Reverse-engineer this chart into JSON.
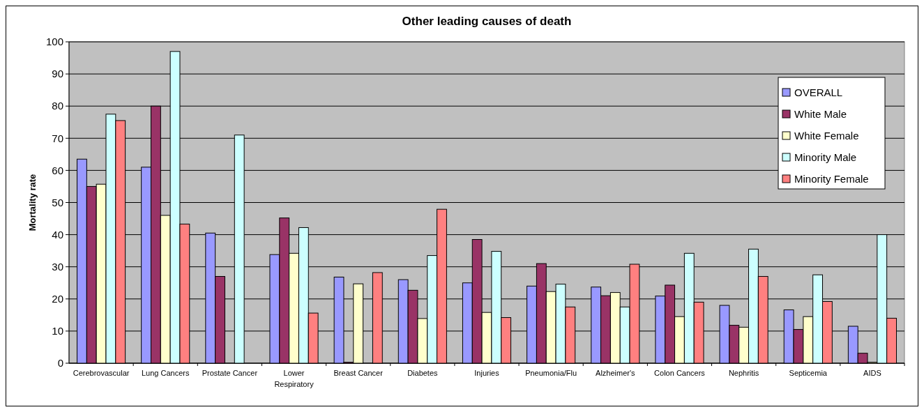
{
  "chart_data": {
    "type": "bar",
    "title": "Other leading causes of death",
    "ylabel": "Mortality rate",
    "categories": [
      "Cerebrovascular",
      "Lung Cancers",
      "Prostate Cancer",
      "Lower Respiratory",
      "Breast Cancer",
      "Diabetes",
      "Injuries",
      "Pneumonia/Flu",
      "Alzheimer's",
      "Colon Cancers",
      "Nephritis",
      "Septicemia",
      "AIDS"
    ],
    "series": [
      {
        "name": "OVERALL",
        "color": "#9999ff",
        "values": [
          63.5,
          61,
          40.5,
          33.8,
          26.8,
          26,
          25,
          24,
          23.7,
          20.9,
          18,
          16.6,
          11.5
        ]
      },
      {
        "name": "White Male",
        "color": "#993366",
        "values": [
          55,
          80,
          27,
          45.2,
          0.3,
          22.7,
          38.5,
          31,
          21,
          24.3,
          11.8,
          10.5,
          3.1
        ]
      },
      {
        "name": "White Female",
        "color": "#ffffcc",
        "values": [
          55.7,
          46,
          null,
          34.2,
          24.7,
          13.9,
          15.8,
          22.3,
          22,
          14.5,
          11.2,
          14.5,
          0.3
        ]
      },
      {
        "name": "Minority Male",
        "color": "#ccffff",
        "values": [
          77.5,
          97,
          71,
          42.2,
          null,
          33.5,
          34.8,
          24.6,
          17.5,
          34.2,
          35.5,
          27.5,
          40
        ]
      },
      {
        "name": "Minority Female",
        "color": "#ff8080",
        "values": [
          75.5,
          43.3,
          null,
          15.6,
          28.2,
          47.9,
          14.2,
          17.5,
          30.8,
          19,
          27,
          19.2,
          14
        ]
      }
    ],
    "ylim": [
      0,
      100
    ],
    "yticks": [
      0,
      10,
      20,
      30,
      40,
      50,
      60,
      70,
      80,
      90,
      100
    ],
    "grid": "y",
    "legend": "top right"
  }
}
